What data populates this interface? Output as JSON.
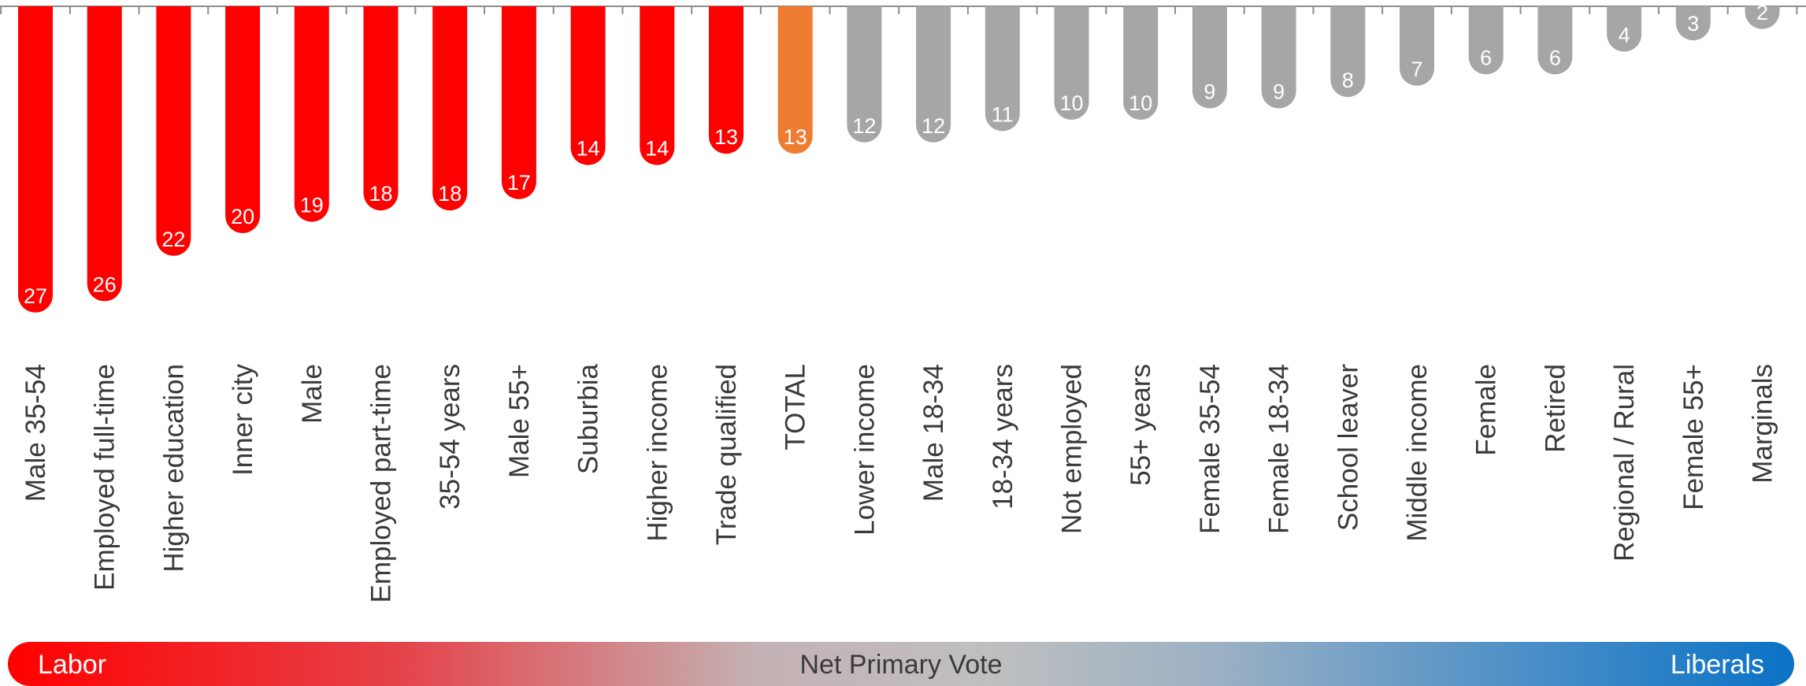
{
  "chart_data": {
    "type": "bar",
    "categories": [
      "Male 35-54",
      "Employed full-time",
      "Higher education",
      "Inner city",
      "Male",
      "Employed part-time",
      "35-54 years",
      "Male 55+",
      "Suburbia",
      "Higher income",
      "Trade qualified",
      "TOTAL",
      "Lower income",
      "Male 18-34",
      "18-34 years",
      "Not employed",
      "55+ years",
      "Female 35-54",
      "Female 18-34",
      "School leaver",
      "Middle income",
      "Female",
      "Retired",
      "Regional / Rural",
      "Female 55+",
      "Marginals"
    ],
    "values": [
      27,
      26,
      22,
      20,
      19,
      18,
      18,
      17,
      14,
      14,
      13,
      13,
      12,
      12,
      11,
      10,
      10,
      9,
      9,
      8,
      7,
      6,
      6,
      4,
      3,
      2
    ],
    "colors": {
      "labor": "#ff0000",
      "total": "#ee7d31",
      "other": "#a6a6a6"
    },
    "ylim": [
      0,
      30
    ]
  },
  "legend": {
    "left_label": "Labor",
    "center_label": "Net Primary Vote",
    "right_label": "Liberals"
  }
}
